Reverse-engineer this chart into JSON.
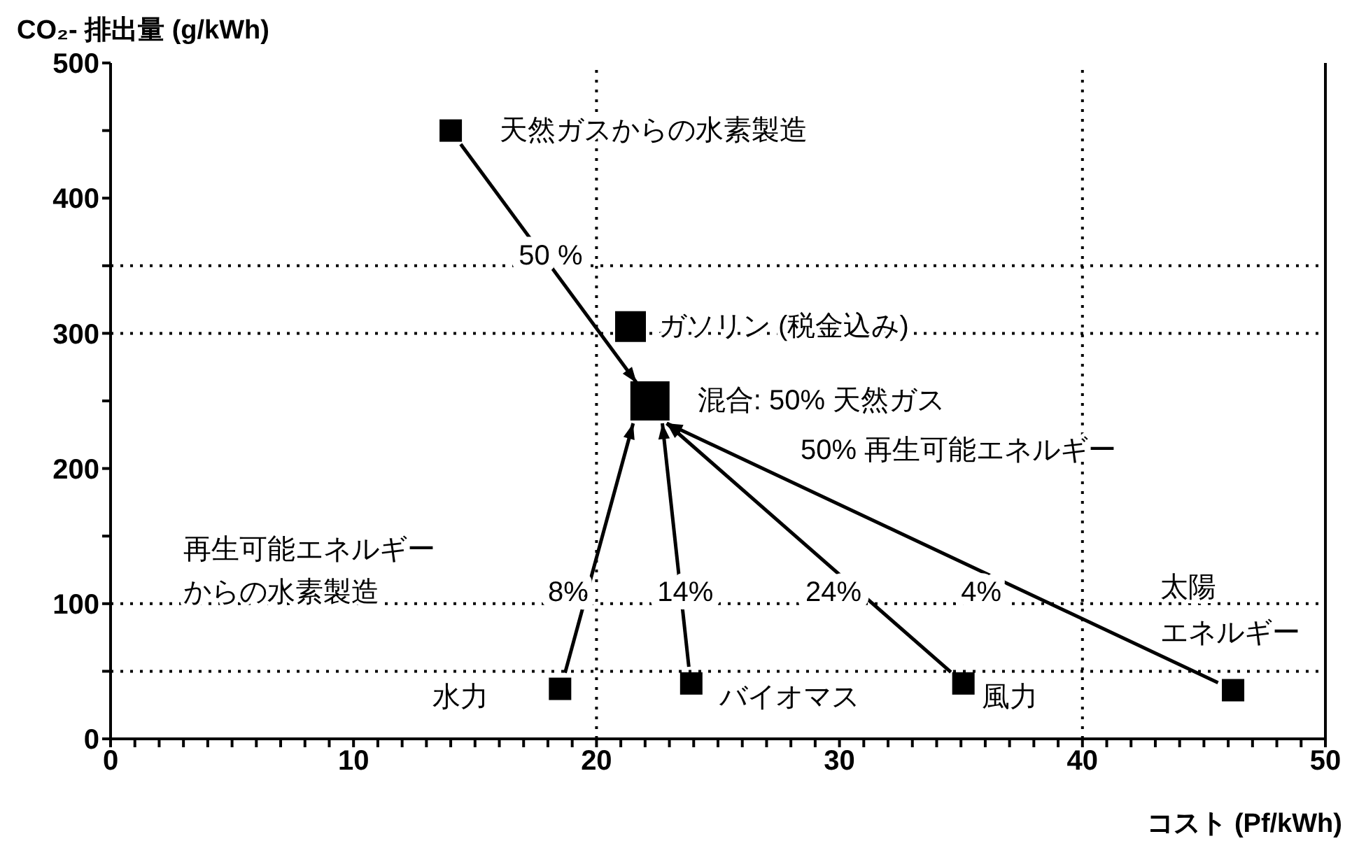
{
  "chart_data": {
    "type": "scatter",
    "xlabel": "コスト (Pf/kWh)",
    "ylabel": "CO₂- 排出量 (g/kWh)",
    "series": [
      {
        "color": "#000000",
        "x": [
          14,
          18.5,
          23.9,
          35.1,
          46.2
        ],
        "values": [
          450,
          37,
          41,
          41,
          36
        ]
      },
      {
        "color": "#000000",
        "x": [
          21.4
        ],
        "values": [
          305
        ]
      },
      {
        "color": "#000000",
        "x": [
          22.2
        ],
        "values": [
          250
        ]
      }
    ],
    "xlim": [
      0,
      50
    ],
    "xticks": [
      0,
      {
        "value": 1,
        "label": null
      },
      {
        "value": 2,
        "label": null
      },
      {
        "value": 3,
        "label": null
      },
      {
        "value": 4,
        "label": null
      },
      {
        "value": 5,
        "label": null
      },
      {
        "value": 6,
        "label": null
      },
      {
        "value": 7,
        "label": null
      },
      {
        "value": 8,
        "label": null
      },
      {
        "value": 9,
        "label": null
      },
      10,
      {
        "value": 11,
        "label": null
      },
      {
        "value": 12,
        "label": null
      },
      {
        "value": 13,
        "label": null
      },
      {
        "value": 14,
        "label": null
      },
      {
        "value": 15,
        "label": null
      },
      {
        "value": 16,
        "label": null
      },
      {
        "value": 17,
        "label": null
      },
      {
        "value": 18,
        "label": null
      },
      {
        "value": 19,
        "label": null
      },
      20,
      {
        "value": 21,
        "label": null
      },
      {
        "value": 22,
        "label": null
      },
      {
        "value": 23,
        "label": null
      },
      {
        "value": 24,
        "label": null
      },
      {
        "value": 25,
        "label": null
      },
      {
        "value": 26,
        "label": null
      },
      {
        "value": 27,
        "label": null
      },
      {
        "value": 28,
        "label": null
      },
      {
        "value": 29,
        "label": null
      },
      30,
      {
        "value": 31,
        "label": null
      },
      {
        "value": 32,
        "label": null
      },
      {
        "value": 33,
        "label": null
      },
      {
        "value": 34,
        "label": null
      },
      {
        "value": 35,
        "label": null
      },
      {
        "value": 36,
        "label": null
      },
      {
        "value": 37,
        "label": null
      },
      {
        "value": 38,
        "label": null
      },
      {
        "value": 39,
        "label": null
      },
      40,
      {
        "value": 41,
        "label": null
      },
      {
        "value": 42,
        "label": null
      },
      {
        "value": 43,
        "label": null
      },
      {
        "value": 44,
        "label": null
      },
      {
        "value": 45,
        "label": null
      },
      {
        "value": 46,
        "label": null
      },
      {
        "value": 47,
        "label": null
      },
      {
        "value": 48,
        "label": null
      },
      {
        "value": 49,
        "label": null
      },
      50
    ],
    "ylim": [
      0,
      500
    ],
    "yticks": [
      0,
      {
        "value": 50,
        "label": null
      },
      100,
      {
        "value": 150,
        "label": null
      },
      200,
      {
        "value": 250,
        "label": null
      },
      300,
      {
        "value": 350,
        "label": null
      },
      400,
      {
        "value": 450,
        "label": null
      },
      500
    ],
    "marker": "square",
    "ref_lines": [
      {
        "axis": "x",
        "value": 20,
        "line_style": "dotted"
      },
      {
        "axis": "x",
        "value": 40,
        "line_style": "dotted"
      },
      {
        "axis": "y",
        "value": 350,
        "line_style": "dotted"
      },
      {
        "axis": "y",
        "value": 300,
        "line_style": "dotted"
      },
      {
        "axis": "y",
        "value": 100,
        "line_style": "dotted"
      },
      {
        "axis": "y",
        "value": 50,
        "line_style": "dotted"
      },
      {
        "axis": "x",
        "value": 50,
        "line_style": "solid"
      }
    ],
    "annotations": [
      {
        "text": "天然ガスからの水素製造",
        "x": 14,
        "y": 450
      },
      {
        "text": "ガソリン (税金込み)",
        "x": 21.4,
        "y": 305
      },
      {
        "text": "混合: 50% 天然ガス",
        "x": 22.2,
        "y": 250
      },
      "50% 再生可能エネルギー",
      "再生可能エネルギー",
      "からの水素製造",
      {
        "text": "水力",
        "x": 18.5,
        "y": 37
      },
      {
        "text": "バイオマス",
        "x": 23.9,
        "y": 41
      },
      {
        "text": "風力",
        "x": 35.1,
        "y": 41
      },
      "太陽",
      "エネルギー",
      "50 %",
      "8%",
      "14%",
      "24%",
      "4%"
    ]
  }
}
